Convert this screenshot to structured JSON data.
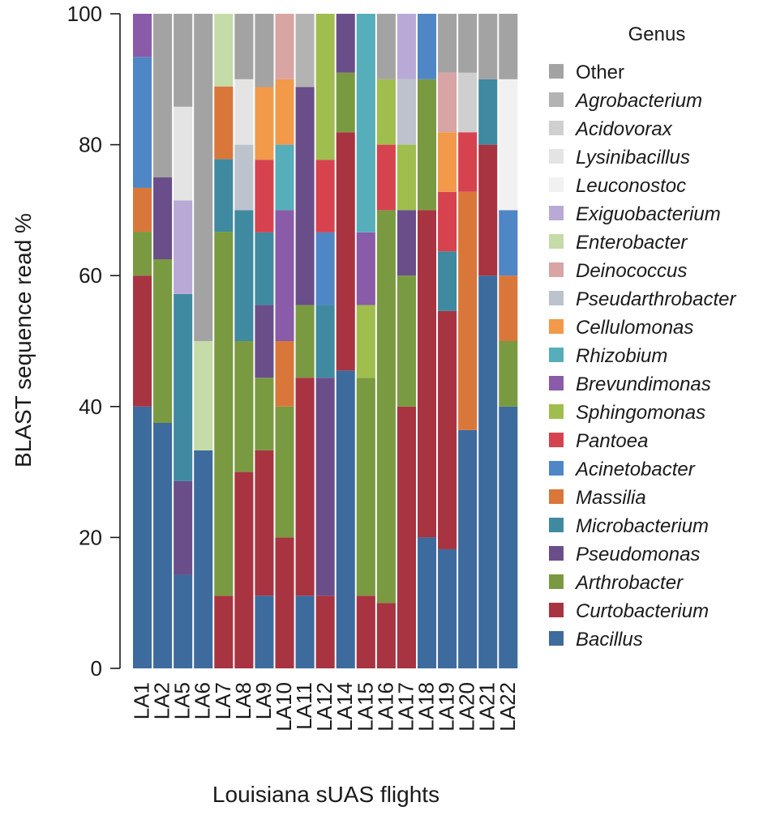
{
  "chart_data": {
    "type": "bar",
    "stacked": true,
    "xlabel": "Louisiana sUAS flights",
    "ylabel": "BLAST sequence read %",
    "ylim": [
      0,
      100
    ],
    "yticks": [
      0,
      20,
      40,
      60,
      80,
      100
    ],
    "legend_title": "Genus",
    "legend_placement": "right",
    "categories": [
      "LA1",
      "LA2",
      "LA5",
      "LA6",
      "LA7",
      "LA8",
      "LA9",
      "LA10",
      "LA11",
      "LA12",
      "LA14",
      "LA15",
      "LA16",
      "LA17",
      "LA18",
      "LA19",
      "LA20",
      "LA21",
      "LA22"
    ],
    "series": [
      {
        "name": "Bacillus",
        "italic": true,
        "color": "#3d6b9e",
        "values": [
          40,
          37.5,
          14.3,
          33.3,
          0,
          0,
          11.1,
          0,
          11.1,
          0,
          45.5,
          0,
          0,
          0,
          20,
          18.2,
          36.4,
          60,
          40
        ]
      },
      {
        "name": "Curtobacterium",
        "italic": true,
        "color": "#a83441",
        "values": [
          20,
          0,
          0,
          0,
          11.1,
          30,
          22.2,
          20,
          33.3,
          11.1,
          36.4,
          11.1,
          10,
          40,
          50,
          36.4,
          0,
          20,
          0
        ]
      },
      {
        "name": "Arthrobacter",
        "italic": true,
        "color": "#7a9a41",
        "values": [
          6.7,
          25,
          0,
          0,
          55.6,
          20,
          11.1,
          20,
          11.1,
          0,
          9.1,
          33.3,
          60,
          20,
          20,
          0,
          0,
          0,
          10
        ]
      },
      {
        "name": "Pseudomonas",
        "italic": true,
        "color": "#6a4e8a",
        "values": [
          0,
          12.5,
          14.3,
          0,
          0,
          0,
          11.1,
          0,
          33.3,
          33.3,
          9.1,
          0,
          0,
          10,
          0,
          0,
          0,
          0,
          0
        ]
      },
      {
        "name": "Microbacterium",
        "italic": true,
        "color": "#3f8aa0",
        "values": [
          0,
          0,
          28.6,
          0,
          11.1,
          20,
          11.1,
          0,
          0,
          11.1,
          0,
          0,
          0,
          0,
          0,
          9.1,
          0,
          10,
          0
        ]
      },
      {
        "name": "Massilia",
        "italic": true,
        "color": "#d9773a",
        "values": [
          6.7,
          0,
          0,
          0,
          11.1,
          0,
          0,
          10,
          0,
          0,
          0,
          0,
          0,
          0,
          0,
          0,
          36.4,
          0,
          10
        ]
      },
      {
        "name": "Acinetobacter",
        "italic": true,
        "color": "#4f86c6",
        "values": [
          20,
          0,
          0,
          0,
          0,
          0,
          0,
          0,
          0,
          11.1,
          0,
          0,
          0,
          0,
          10,
          0,
          0,
          0,
          10
        ]
      },
      {
        "name": "Pantoea",
        "italic": true,
        "color": "#d6434f",
        "values": [
          0,
          0,
          0,
          0,
          0,
          0,
          11.1,
          0,
          0,
          11.1,
          0,
          0,
          10,
          0,
          0,
          9.1,
          9.1,
          0,
          0
        ]
      },
      {
        "name": "Sphingomonas",
        "italic": true,
        "color": "#9fbe4e",
        "values": [
          0,
          0,
          0,
          0,
          0,
          0,
          0,
          0,
          0,
          22.3,
          0,
          11.1,
          10,
          10,
          0,
          0,
          0,
          0,
          0
        ]
      },
      {
        "name": "Brevundimonas",
        "italic": true,
        "color": "#8a5ba8",
        "values": [
          6.6,
          0,
          0,
          0,
          0,
          0,
          0,
          20,
          0,
          0,
          0,
          11.1,
          0,
          0,
          0,
          0,
          0,
          0,
          0
        ]
      },
      {
        "name": "Rhizobium",
        "italic": true,
        "color": "#56aeba",
        "values": [
          0,
          0,
          0,
          0,
          0,
          0,
          0,
          10,
          0,
          0,
          0,
          33.4,
          0,
          0,
          0,
          0,
          0,
          0,
          0
        ]
      },
      {
        "name": "Cellulomonas",
        "italic": true,
        "color": "#f2994a",
        "values": [
          0,
          0,
          0,
          0,
          0,
          0,
          11.1,
          10,
          0,
          0,
          0,
          0,
          0,
          0,
          0,
          9.1,
          0,
          0,
          0
        ]
      },
      {
        "name": "Pseudarthrobacter",
        "italic": true,
        "color": "#bcc3cc",
        "values": [
          0,
          0,
          0,
          0,
          0,
          10,
          0,
          0,
          0,
          0,
          0,
          0,
          0,
          10,
          0,
          0,
          0,
          0,
          0
        ]
      },
      {
        "name": "Deinococcus",
        "italic": true,
        "color": "#d8a4a4",
        "values": [
          0,
          0,
          0,
          0,
          0,
          0,
          0,
          10,
          0,
          0,
          0,
          0,
          0,
          0,
          0,
          9.1,
          0,
          0,
          0
        ]
      },
      {
        "name": "Enterobacter",
        "italic": true,
        "color": "#c5dba8",
        "values": [
          0,
          0,
          0,
          16.7,
          11.1,
          0,
          0,
          0,
          0,
          0,
          0,
          0,
          0,
          0,
          0,
          0,
          0,
          0,
          0
        ]
      },
      {
        "name": "Exiguobacterium",
        "italic": true,
        "color": "#b8a9d6",
        "values": [
          0,
          0,
          14.3,
          0,
          0,
          0,
          0,
          0,
          0,
          0,
          0,
          0,
          0,
          10,
          0,
          0,
          0,
          0,
          0
        ]
      },
      {
        "name": "Leuconostoc",
        "italic": true,
        "color": "#f1f1f1",
        "values": [
          0,
          0,
          0,
          0,
          0,
          0,
          0,
          0,
          0,
          0,
          0,
          0,
          0,
          0,
          0,
          0,
          0,
          0,
          20
        ]
      },
      {
        "name": "Lysinibacillus",
        "italic": true,
        "color": "#e4e4e4",
        "values": [
          0,
          0,
          14.3,
          0,
          0,
          10,
          0,
          0,
          0,
          0,
          0,
          0,
          0,
          0,
          0,
          0,
          0,
          0,
          0
        ]
      },
      {
        "name": "Acidovorax",
        "italic": true,
        "color": "#cfcfcf",
        "values": [
          0,
          0,
          0,
          0,
          0,
          0,
          0,
          0,
          0,
          0,
          0,
          0,
          0,
          0,
          0,
          0,
          9.1,
          0,
          0
        ]
      },
      {
        "name": "Agrobacterium",
        "italic": true,
        "color": "#b3b3b3",
        "values": [
          0,
          0,
          0,
          0,
          0,
          0,
          0,
          0,
          11.2,
          0,
          0,
          0,
          0,
          0,
          0,
          0,
          0,
          0,
          0
        ]
      },
      {
        "name": "Other",
        "italic": false,
        "color": "#a3a3a3",
        "values": [
          0,
          25,
          14.2,
          50,
          0,
          10,
          11.2,
          0,
          0,
          0,
          0,
          0,
          10,
          0,
          0,
          9,
          9,
          10,
          10
        ]
      }
    ]
  }
}
